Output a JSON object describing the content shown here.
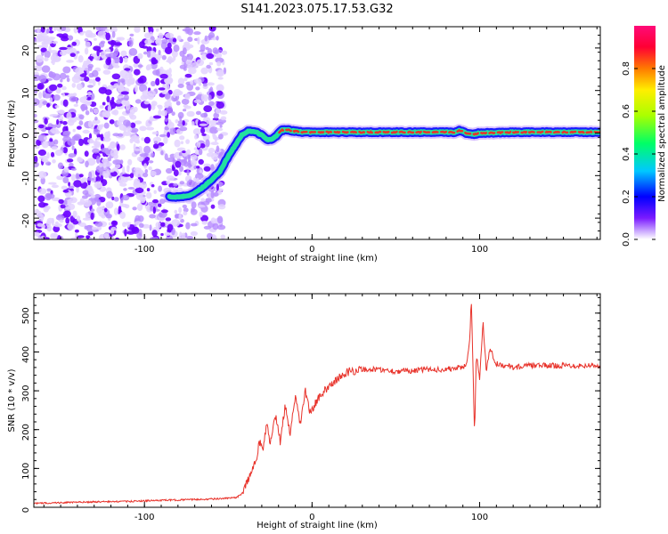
{
  "title": "S141.2023.075.17.53.G32",
  "colors": {
    "snr_line": "#e8332b",
    "track_core": "#e8332b",
    "track_mid": "#22e0a0",
    "track_edge": "#1a1aff",
    "noise": "#7a1aff"
  },
  "chart_data": [
    {
      "type": "heatmap",
      "title": "",
      "xlabel": "Height of straight line (km)",
      "ylabel": "Frequency (Hz)",
      "xlim": [
        -166,
        172
      ],
      "ylim": [
        -25,
        25
      ],
      "xticks": [
        -100,
        0,
        100
      ],
      "xtick_labels": [
        "-100",
        "0",
        "100"
      ],
      "yticks": [
        -20,
        -10,
        0,
        10,
        20
      ],
      "ytick_labels": [
        "-20",
        "-10",
        "0",
        "10",
        "20"
      ],
      "noise_region_x": [
        -166,
        -52
      ],
      "ridge": {
        "x": [
          -85,
          -78,
          -72,
          -66,
          -60,
          -55,
          -50,
          -46,
          -42,
          -38,
          -34,
          -30,
          -27,
          -24,
          -21,
          -18,
          -14,
          -10,
          -5,
          0,
          10,
          20,
          40,
          60,
          85,
          88,
          92,
          96,
          100,
          120,
          150,
          172
        ],
        "freq": [
          -15,
          -15,
          -14.5,
          -13,
          -11,
          -9,
          -5.5,
          -3,
          -0.5,
          0.5,
          0.3,
          -0.5,
          -1.5,
          -1.5,
          -0.5,
          0.7,
          0.7,
          0.4,
          0.2,
          0.2,
          0.2,
          0.2,
          0.2,
          0.2,
          0.2,
          0.6,
          0,
          -0.3,
          0,
          0.2,
          0.2,
          0.2
        ]
      },
      "colorbar": {
        "label": "Normalized spectral amplitude",
        "range": [
          0,
          1
        ],
        "ticks": [
          0.0,
          0.2,
          0.4,
          0.6,
          0.8
        ],
        "tick_labels": [
          "0.0",
          "0.2",
          "0.4",
          "0.6",
          "0.8"
        ],
        "colormap": [
          "#ffffff",
          "#c9a6ff",
          "#7a1aff",
          "#0000ff",
          "#00c8ff",
          "#00ff66",
          "#aaff00",
          "#ffee00",
          "#ff7a00",
          "#ff0033",
          "#ff0a78"
        ]
      }
    },
    {
      "type": "line",
      "title": "",
      "xlabel": "Height of straight line (km)",
      "ylabel": "SNR (10 * v/v)",
      "xlim": [
        -166,
        172
      ],
      "ylim": [
        0,
        550
      ],
      "xticks": [
        -100,
        0,
        100
      ],
      "xtick_labels": [
        "-100",
        "0",
        "100"
      ],
      "yticks": [
        0,
        100,
        200,
        300,
        400,
        500
      ],
      "ytick_labels": [
        "0",
        "100",
        "200",
        "300",
        "400",
        "500"
      ],
      "series": [
        {
          "x": [
            -166,
            -150,
            -130,
            -110,
            -90,
            -70,
            -55,
            -45,
            -42,
            -39,
            -36,
            -33,
            -31,
            -29,
            -27,
            -25,
            -22,
            -19,
            -16,
            -13,
            -10,
            -7,
            -4,
            -1,
            2,
            6,
            10,
            14,
            18,
            22,
            26,
            30,
            40,
            50,
            60,
            70,
            80,
            88,
            92,
            94,
            95,
            96,
            97,
            98,
            100,
            102,
            104,
            106,
            110,
            120,
            130,
            140,
            150,
            160,
            172
          ],
          "y": [
            10,
            12,
            14,
            15,
            18,
            20,
            22,
            25,
            35,
            60,
            95,
            130,
            175,
            150,
            220,
            160,
            240,
            170,
            260,
            190,
            280,
            215,
            300,
            240,
            270,
            290,
            315,
            325,
            340,
            350,
            352,
            355,
            355,
            350,
            352,
            355,
            355,
            360,
            365,
            420,
            540,
            360,
            185,
            395,
            330,
            480,
            350,
            410,
            370,
            360,
            365,
            365,
            365,
            365,
            365
          ]
        }
      ]
    }
  ]
}
